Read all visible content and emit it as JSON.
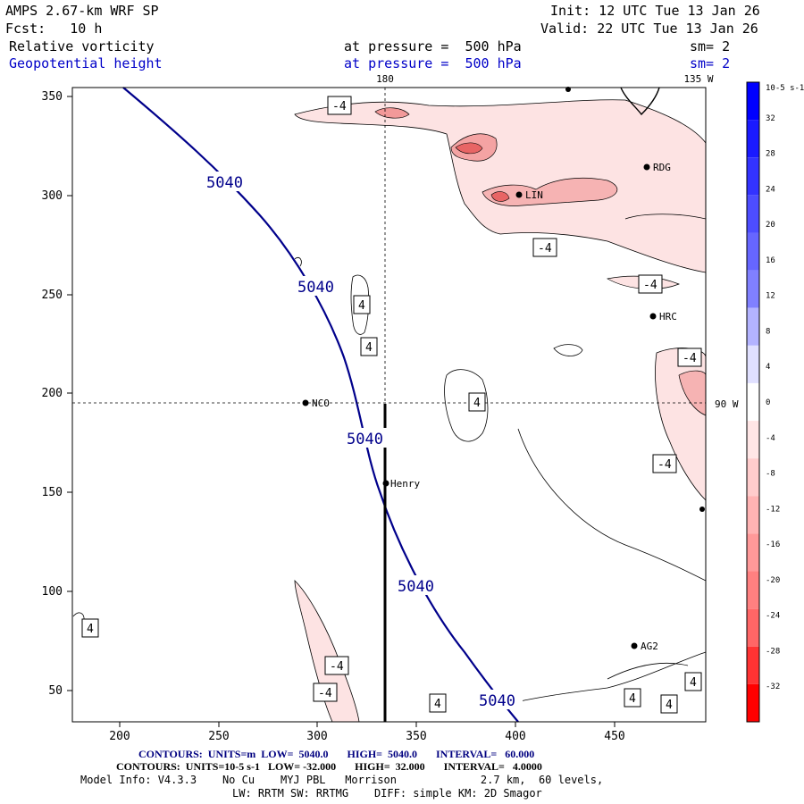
{
  "header": {
    "model": "AMPS 2.67-km WRF SP",
    "init": "Init: 12 UTC Tue 13 Jan 26",
    "fcst": "Fcst:   10 h",
    "valid": "Valid: 22 UTC Tue 13 Jan 26",
    "field1": "Relative vorticity",
    "field1_level": "at pressure =  500 hPa",
    "field1_sm": "sm= 2",
    "field2": "Geopotential height",
    "field2_level": "at pressure =  500 hPa",
    "field2_sm": "sm= 2"
  },
  "map": {
    "top_labels": [
      "180",
      "135 W"
    ],
    "right_label": "90 W",
    "x_ticks": [
      "200",
      "250",
      "300",
      "350",
      "400",
      "450"
    ],
    "y_ticks": [
      "350",
      "300",
      "250",
      "200",
      "150",
      "100",
      "50"
    ],
    "stations": [
      "RDG",
      "LIN",
      "HRC",
      "NCO",
      "Henry",
      "AG2"
    ],
    "height_labels": [
      "5040",
      "5040",
      "5040",
      "5040",
      "5040"
    ],
    "vort_labels": [
      "-4",
      "-4",
      "-4",
      "4",
      "4",
      "4",
      "-4",
      "-4",
      "4",
      "-4",
      "-4",
      "4",
      "4",
      "4",
      "4"
    ]
  },
  "colorbar": {
    "units": "10-5 s-1",
    "ticks": [
      "32",
      "28",
      "24",
      "20",
      "16",
      "12",
      "8",
      "4",
      "0",
      "-4",
      "-8",
      "-12",
      "-16",
      "-20",
      "-24",
      "-28",
      "-32"
    ],
    "colors": [
      "#0000ff",
      "#1a1aff",
      "#3333ff",
      "#4d4dff",
      "#6666ff",
      "#8080ff",
      "#b3b3ff",
      "#e0e0ff",
      "#ffffff",
      "#ffe6e6",
      "#ffcccc",
      "#ffb3b3",
      "#ff9999",
      "#ff8080",
      "#ff6666",
      "#ff3333",
      "#ff0000"
    ]
  },
  "footer": {
    "line1": "CONTOURS:  UNITS=m  LOW=  5040.0       HIGH=  5040.0       INTERVAL=   60.000",
    "line2": "CONTOURS:  UNITS=10-5 s-1   LOW= -32.000       HIGH=  32.000       INTERVAL=   4.0000",
    "line3": "Model Info: V4.3.3    No Cu    MYJ PBL   Morrison             2.7 km,  60 levels,",
    "line4": "LW: RRTM SW: RRTMG    DIFF: simple KM: 2D Smagor"
  }
}
